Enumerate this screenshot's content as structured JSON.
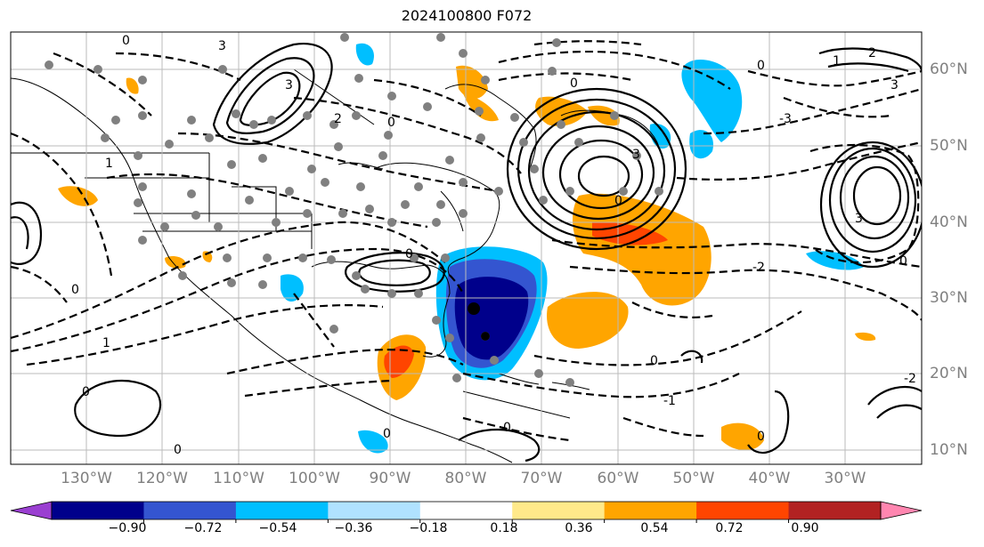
{
  "title": "2024100800 F072",
  "map": {
    "projection": "plate-carree",
    "lon_range": [
      -140,
      -20
    ],
    "lat_range": [
      7,
      65
    ],
    "lon_labels": [
      "130°W",
      "120°W",
      "110°W",
      "100°W",
      "90°W",
      "80°W",
      "70°W",
      "60°W",
      "50°W",
      "40°W",
      "30°W"
    ],
    "lat_labels": [
      "60°N",
      "50°N",
      "40°N",
      "30°N",
      "20°N",
      "10°N"
    ],
    "contour_labels": [
      "0",
      "-1",
      "-2",
      "-3",
      "1",
      "2",
      "3"
    ],
    "grid": true
  },
  "colorbar": {
    "ticks": [
      "−0.90",
      "−0.72",
      "−0.54",
      "−0.36",
      "−0.18",
      "0.18",
      "0.36",
      "0.54",
      "0.72",
      "0.90"
    ],
    "colors": [
      "#9a3fd1",
      "#00008b",
      "#3455d0",
      "#00bfff",
      "#b0e2ff",
      "#ffffff",
      "#ffe98a",
      "#ffa500",
      "#ff4500",
      "#b22222",
      "#ff86b0"
    ],
    "extend": "both"
  }
}
